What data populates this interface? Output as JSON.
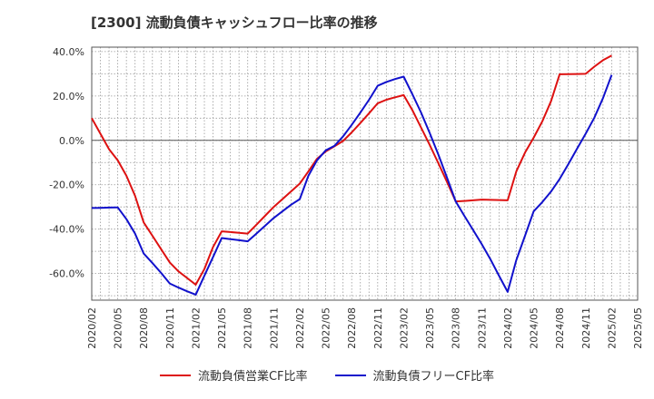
{
  "chart_data": {
    "type": "line",
    "title": "[2300]  流動負債キャッシュフロー比率の推移",
    "xlabel": "",
    "ylabel": "",
    "ylim": [
      -72,
      42
    ],
    "y_ticks": [
      40,
      20,
      0,
      -20,
      -40,
      -60
    ],
    "y_tick_labels": [
      "40.0%",
      "20.0%",
      "0.0%",
      "-20.0%",
      "-40.0%",
      "-60.0%"
    ],
    "x_tick_labels": [
      "2020/02",
      "2020/05",
      "2020/08",
      "2020/11",
      "2021/02",
      "2021/05",
      "2021/08",
      "2021/11",
      "2022/02",
      "2022/05",
      "2022/08",
      "2022/11",
      "2023/02",
      "2023/05",
      "2023/08",
      "2023/11",
      "2024/02",
      "2024/05",
      "2024/08",
      "2024/11",
      "2025/02",
      "2025/05"
    ],
    "x": [
      "2020/02",
      "2020/03",
      "2020/04",
      "2020/05",
      "2020/06",
      "2020/07",
      "2020/08",
      "2020/09",
      "2020/10",
      "2020/11",
      "2020/12",
      "2021/01",
      "2021/02",
      "2021/03",
      "2021/04",
      "2021/05",
      "2021/06",
      "2021/07",
      "2021/08",
      "2021/09",
      "2021/10",
      "2021/11",
      "2021/12",
      "2022/01",
      "2022/02",
      "2022/03",
      "2022/04",
      "2022/05",
      "2022/06",
      "2022/07",
      "2022/08",
      "2022/09",
      "2022/10",
      "2022/11",
      "2022/12",
      "2023/01",
      "2023/02",
      "2023/03",
      "2023/04",
      "2023/05",
      "2023/06",
      "2023/07",
      "2023/08",
      "2023/09",
      "2023/10",
      "2023/11",
      "2023/12",
      "2024/01",
      "2024/02",
      "2024/03",
      "2024/04",
      "2024/05",
      "2024/06",
      "2024/07",
      "2024/08",
      "2024/09",
      "2024/10",
      "2024/11",
      "2024/12",
      "2025/01",
      "2025/02"
    ],
    "grid": true,
    "legend_position": "bottom",
    "series": [
      {
        "name": "流動負債営業CF比率",
        "color": "#dd1111",
        "values": [
          10,
          3,
          -4,
          -9,
          -16,
          -25,
          -37,
          -43,
          -49,
          -55,
          -59,
          -62,
          -65,
          -58,
          -48,
          -41,
          -41.3,
          -41.7,
          -42,
          -38,
          -34,
          -30,
          -26.5,
          -23,
          -19.5,
          -14,
          -8.3,
          -5,
          -2.7,
          -0.3,
          3.6,
          7.8,
          12.2,
          16.7,
          18.3,
          19.4,
          20.4,
          13.6,
          5.8,
          -2,
          -10.3,
          -18.7,
          -27.5,
          -27.3,
          -27,
          -26.7,
          -26.8,
          -26.9,
          -27,
          -14,
          -5.5,
          1.2,
          8.6,
          17.6,
          29.8,
          29.85,
          29.9,
          30,
          33.2,
          36.1,
          38.2
        ]
      },
      {
        "name": "流動負債フリーCF比率",
        "color": "#1111cc",
        "values": [
          -30.5,
          -30.4,
          -30.3,
          -30.2,
          -35.5,
          -42,
          -51,
          -55.3,
          -59.7,
          -64.5,
          -66.3,
          -68,
          -69.5,
          -61,
          -52.5,
          -44,
          -44.5,
          -45,
          -45.5,
          -42,
          -38.5,
          -35,
          -32,
          -29,
          -26.5,
          -16,
          -9,
          -4.5,
          -2.5,
          1.8,
          7,
          12.5,
          18.3,
          24.6,
          26.3,
          27.6,
          28.7,
          20.8,
          12.6,
          3.4,
          -6.4,
          -16.8,
          -27.5,
          -34,
          -40.3,
          -46.7,
          -53.5,
          -61,
          -68.3,
          -54,
          -43,
          -32,
          -27.8,
          -23.1,
          -17.4,
          -10.7,
          -3.8,
          3,
          10.2,
          19,
          29.5
        ]
      }
    ]
  }
}
